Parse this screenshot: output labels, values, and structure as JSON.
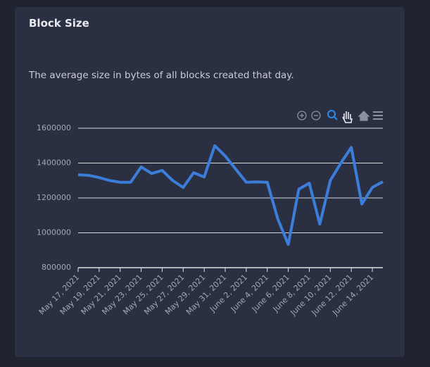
{
  "chart_data": {
    "type": "line",
    "title": "Block Size",
    "subtitle": "The average size in bytes of all blocks created that day.",
    "categories": [
      "May 17, 2021",
      null,
      "May 19, 2021",
      null,
      "May 21, 2021",
      null,
      "May 23, 2021",
      null,
      "May 25, 2021",
      null,
      "May 27, 2021",
      null,
      "May 29, 2021",
      null,
      "May 31, 2021",
      null,
      "June 2, 2021",
      null,
      "June 4, 2021",
      null,
      "June 6, 2021",
      null,
      "June 8, 2021",
      null,
      "June 10, 2021",
      null,
      "June 12, 2021",
      null,
      "June 14, 2021",
      null
    ],
    "series": [
      {
        "name": "Block Size",
        "color": "#3b7dd8",
        "values": [
          1333000,
          1330000,
          1317000,
          1300000,
          1290000,
          1290000,
          1378000,
          1340000,
          1358000,
          1300000,
          1260000,
          1345000,
          1320000,
          1500000,
          1440000,
          1365000,
          1290000,
          1292000,
          1290000,
          1080000,
          933000,
          1250000,
          1285000,
          1050000,
          1300000,
          1400000,
          1490000,
          1165000,
          1260000,
          1293000
        ]
      }
    ],
    "ylim": [
      800000,
      1600000
    ],
    "yticks": [
      800000,
      1000000,
      1200000,
      1400000,
      1600000
    ],
    "grid": true
  }
}
